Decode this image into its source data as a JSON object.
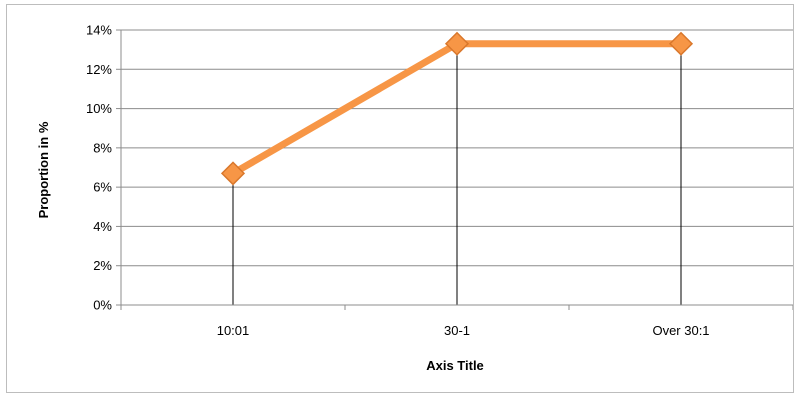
{
  "chart_data": {
    "type": "line",
    "title": "",
    "xlabel": "Axis Title",
    "ylabel": "Proportion in %",
    "categories": [
      "10:01",
      "30-1",
      "Over 30:1"
    ],
    "series": [
      {
        "values": [
          6.7,
          13.3,
          13.3
        ],
        "color": "#f79646",
        "marker": "diamond"
      }
    ],
    "ylim": [
      0,
      14
    ],
    "y_ticks": [
      0,
      2,
      4,
      6,
      8,
      10,
      12,
      14
    ],
    "y_tick_labels": [
      "0%",
      "2%",
      "4%",
      "6%",
      "8%",
      "10%",
      "12%",
      "14%"
    ],
    "grid": true,
    "drop_lines": true,
    "legend": "none"
  }
}
